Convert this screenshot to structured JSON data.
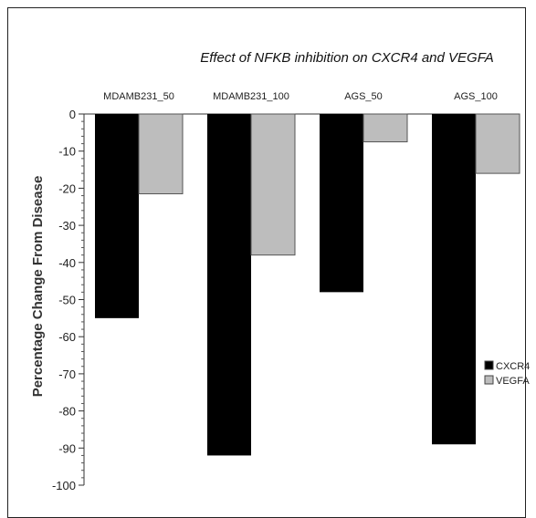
{
  "chart_data": {
    "type": "bar",
    "title": "Effect of NFKB inhibition on CXCR4 and VEGFA",
    "ylabel": "Percentage Change From Disease",
    "xlabel": "",
    "categories": [
      "MDAMB231_50",
      "MDAMB231_100",
      "AGS_50",
      "AGS_100"
    ],
    "series": [
      {
        "name": "CXCR4",
        "values": [
          -55,
          -92,
          -48,
          -89
        ],
        "color": "#000000"
      },
      {
        "name": "VEGFA",
        "values": [
          -21.5,
          -38,
          -7.5,
          -16
        ],
        "color": "#bdbdbd"
      }
    ],
    "ylim": [
      -100,
      0
    ],
    "yticks": [
      0,
      -10,
      -20,
      -30,
      -40,
      -50,
      -60,
      -70,
      -80,
      -90,
      -100
    ],
    "x_axis_position": "top",
    "legend_position": "right",
    "grid": false
  }
}
